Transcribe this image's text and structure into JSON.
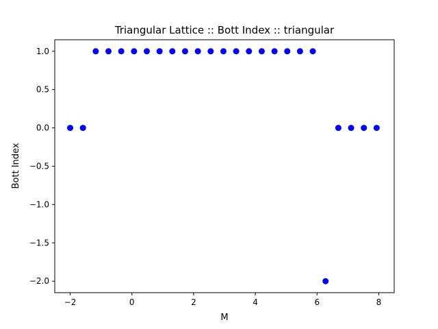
{
  "chart_data": {
    "type": "scatter",
    "title": "Triangular Lattice :: Bott Index :: triangular",
    "xlabel": "M",
    "ylabel": "Bott Index",
    "xlim": [
      -2.5,
      8.5
    ],
    "ylim": [
      -2.15,
      1.15
    ],
    "xticks": [
      -2,
      0,
      2,
      4,
      6,
      8
    ],
    "xtick_labels": [
      "−2",
      "0",
      "2",
      "4",
      "6",
      "8"
    ],
    "yticks": [
      1.0,
      0.5,
      0.0,
      -0.5,
      -1.0,
      -1.5,
      -2.0
    ],
    "ytick_labels": [
      "1.0",
      "0.5",
      "0.0",
      "−0.5",
      "−1.0",
      "−1.5",
      "−2.0"
    ],
    "grid": false,
    "marker_color": "#0000ff",
    "series": [
      {
        "x": [
          -2.0,
          -1.586,
          -1.172,
          -0.759,
          -0.345,
          0.069,
          0.483,
          0.897,
          1.31,
          1.724,
          2.138,
          2.552,
          2.966,
          3.379,
          3.793,
          4.207,
          4.621,
          5.034,
          5.448,
          5.862,
          6.276,
          6.69,
          7.103,
          7.517,
          7.931
        ],
        "y": [
          0,
          0,
          1,
          1,
          1,
          1,
          1,
          1,
          1,
          1,
          1,
          1,
          1,
          1,
          1,
          1,
          1,
          1,
          1,
          1,
          -2,
          0,
          0,
          0,
          0
        ]
      }
    ]
  }
}
